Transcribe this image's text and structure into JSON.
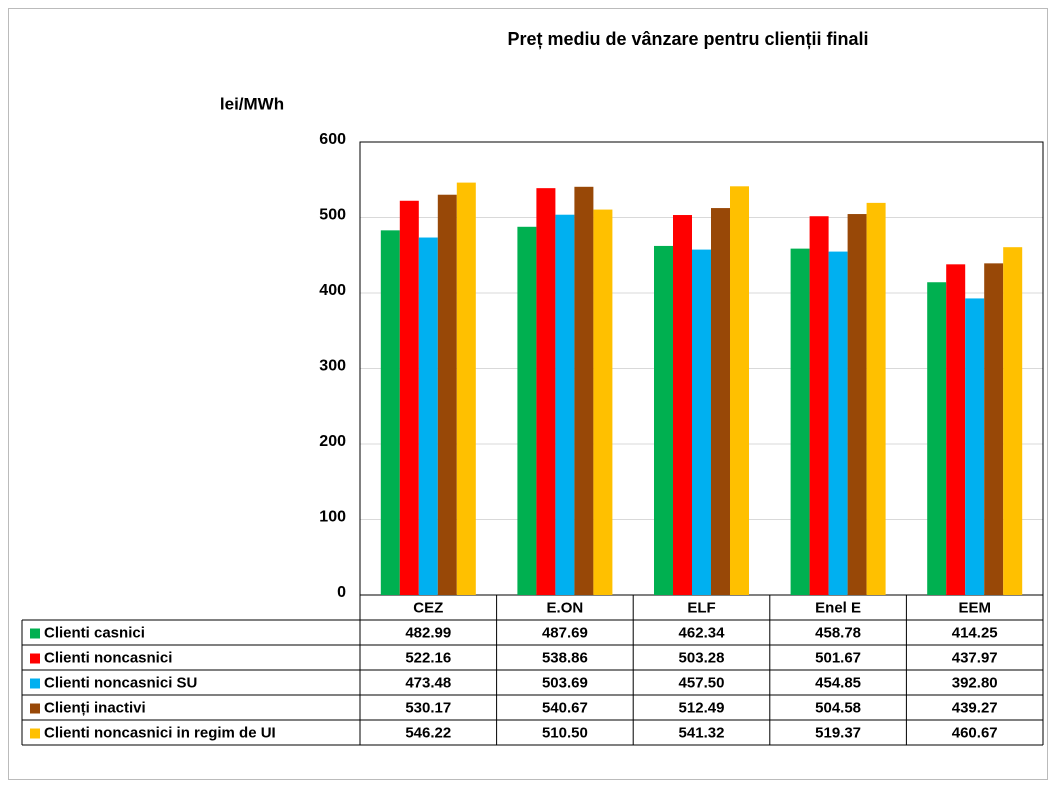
{
  "chart_data": {
    "type": "bar",
    "title": "Preț mediu de vânzare pentru clienții finali",
    "y_label": "lei/MWh",
    "categories": [
      "CEZ",
      "E.ON",
      "ELF",
      "Enel E",
      "EEM"
    ],
    "ylim": [
      0,
      600
    ],
    "yticks": [
      0,
      100,
      200,
      300,
      400,
      500,
      600
    ],
    "grid": true,
    "series": [
      {
        "name": "Clienti casnici",
        "color": "#00b050",
        "values": [
          482.99,
          487.69,
          462.34,
          458.78,
          414.25
        ],
        "value_labels": [
          "482.99",
          "487.69",
          "462.34",
          "458.78",
          "414.25"
        ]
      },
      {
        "name": "Clienti noncasnici",
        "color": "#ff0000",
        "values": [
          522.16,
          538.86,
          503.28,
          501.67,
          437.97
        ],
        "value_labels": [
          "522.16",
          "538.86",
          "503.28",
          "501.67",
          "437.97"
        ]
      },
      {
        "name": "Clienti noncasnici SU",
        "color": "#00b0f0",
        "values": [
          473.48,
          503.69,
          457.5,
          454.85,
          392.8
        ],
        "value_labels": [
          "473.48",
          "503.69",
          "457.50",
          "454.85",
          "392.80"
        ]
      },
      {
        "name": "Clienți inactivi",
        "color": "#984807",
        "values": [
          530.17,
          540.67,
          512.49,
          504.58,
          439.27
        ],
        "value_labels": [
          "530.17",
          "540.67",
          "512.49",
          "504.58",
          "439.27"
        ]
      },
      {
        "name": "Clienti noncasnici in regim de UI",
        "color": "#ffc000",
        "values": [
          546.22,
          510.5,
          541.32,
          519.37,
          460.67
        ],
        "value_labels": [
          "546.22",
          "510.50",
          "541.32",
          "519.37",
          "460.67"
        ]
      }
    ]
  }
}
